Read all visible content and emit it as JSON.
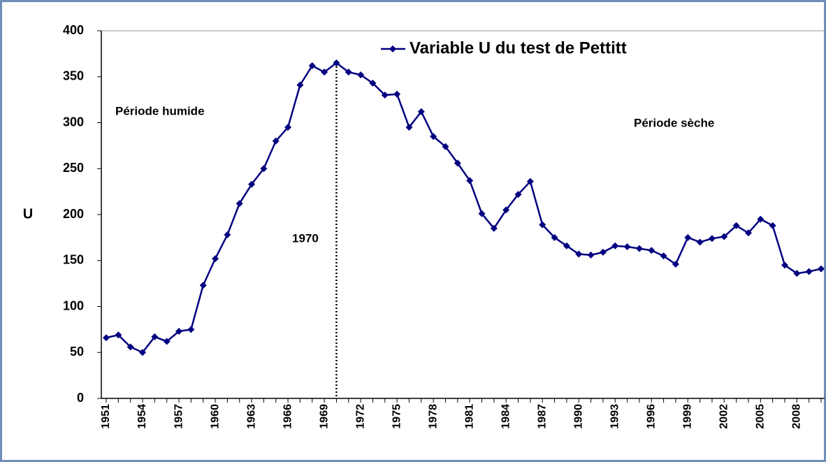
{
  "chart_data": {
    "type": "line",
    "series": [
      {
        "name": "Variable U du test de Pettitt",
        "color": "#000080",
        "values": [
          66,
          69,
          56,
          50,
          67,
          62,
          73,
          75,
          123,
          152,
          178,
          212,
          233,
          250,
          280,
          295,
          341,
          362,
          355,
          365,
          355,
          352,
          343,
          330,
          331,
          295,
          312,
          285,
          274,
          256,
          237,
          201,
          185,
          205,
          222,
          236,
          189,
          175,
          166,
          157,
          156,
          159,
          166,
          165,
          163,
          161,
          155,
          146,
          175,
          170,
          174,
          176,
          188,
          180,
          195,
          188,
          145,
          136,
          138,
          141
        ]
      }
    ],
    "categories": [
      "1951",
      null,
      null,
      "1954",
      null,
      null,
      "1957",
      null,
      null,
      "1960",
      null,
      null,
      "1963",
      null,
      null,
      "1966",
      null,
      null,
      "1969",
      null,
      null,
      "1972",
      null,
      null,
      "1975",
      null,
      null,
      "1978",
      null,
      null,
      "1981",
      null,
      null,
      "1984",
      null,
      null,
      "1987",
      null,
      null,
      "1990",
      null,
      null,
      "1993",
      null,
      null,
      "1996",
      null,
      null,
      "1999",
      null,
      null,
      "2002",
      null,
      null,
      "2005",
      null,
      null,
      "2008",
      null,
      null
    ],
    "ylabel": "U",
    "ylim": [
      0,
      400
    ],
    "yticks": [
      0,
      50,
      100,
      150,
      200,
      250,
      300,
      350,
      400
    ],
    "annotations": [
      "Période humide",
      "Période sèche",
      "1970"
    ],
    "legend": "top"
  }
}
